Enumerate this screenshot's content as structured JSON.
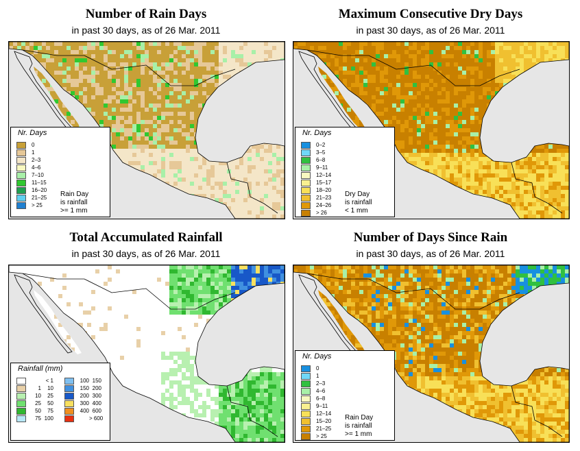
{
  "panels": {
    "rain_days": {
      "title": "Number of Rain Days",
      "subtitle": "in past 30 days, as of  26 Mar. 2011",
      "legend_title": "Nr. Days",
      "legend": [
        {
          "label": "0",
          "color": "#c8a038"
        },
        {
          "label": "1",
          "color": "#e6c898"
        },
        {
          "label": "2–3",
          "color": "#f4e6c8"
        },
        {
          "label": "4–6",
          "color": "#f8f8c0"
        },
        {
          "label": "7–10",
          "color": "#a8f0a8"
        },
        {
          "label": "11–15",
          "color": "#30c830"
        },
        {
          "label": "16–20",
          "color": "#20a050"
        },
        {
          "label": "21–25",
          "color": "#60d0f0"
        },
        {
          "label": "> 25",
          "color": "#2080d0"
        }
      ],
      "note": [
        "Rain Day",
        "is rainfall",
        ">= 1 mm"
      ]
    },
    "dry_days": {
      "title": "Maximum Consecutive Dry Days",
      "subtitle": "in past 30 days, as of  26 Mar. 2011",
      "legend_title": "Nr. Days",
      "legend": [
        {
          "label": "0–2",
          "color": "#1890e0"
        },
        {
          "label": "3–5",
          "color": "#70d8f8"
        },
        {
          "label": "6–8",
          "color": "#30c040"
        },
        {
          "label": "9–11",
          "color": "#a8f0a8"
        },
        {
          "label": "12–14",
          "color": "#f8f8c0"
        },
        {
          "label": "15–17",
          "color": "#f8f090"
        },
        {
          "label": "18–20",
          "color": "#f8e058"
        },
        {
          "label": "21–23",
          "color": "#f0c030"
        },
        {
          "label": "24–26",
          "color": "#e09808"
        },
        {
          "label": "> 26",
          "color": "#c88000"
        }
      ],
      "note": [
        "Dry Day",
        "is rainfall",
        "< 1 mm"
      ]
    },
    "rainfall": {
      "title": "Total Accumulated Rainfall",
      "subtitle": "in past 30 days, as of  26 Mar. 2011",
      "legend_title": "Rainfall (mm)",
      "legend_left": [
        {
          "a": "",
          "b": "< 1",
          "color": "#ffffff"
        },
        {
          "a": "1",
          "b": "10",
          "color": "#e8d0a8"
        },
        {
          "a": "10",
          "b": "25",
          "color": "#b8f0b0"
        },
        {
          "a": "25",
          "b": "50",
          "color": "#70e070"
        },
        {
          "a": "50",
          "b": "75",
          "color": "#30b830"
        },
        {
          "a": "75",
          "b": "100",
          "color": "#b8e8f8"
        }
      ],
      "legend_right": [
        {
          "a": "100",
          "b": "150",
          "color": "#80c0f0"
        },
        {
          "a": "150",
          "b": "200",
          "color": "#4090e0"
        },
        {
          "a": "200",
          "b": "300",
          "color": "#1858c8"
        },
        {
          "a": "300",
          "b": "400",
          "color": "#f8e060"
        },
        {
          "a": "400",
          "b": "600",
          "color": "#f09020"
        },
        {
          "a": "",
          "b": "> 600",
          "color": "#e83010"
        }
      ]
    },
    "since_rain": {
      "title": "Number of Days Since Rain",
      "subtitle": "in past 30 days, as of  26 Mar. 2011",
      "legend_title": "Nr. Days",
      "legend": [
        {
          "label": "0",
          "color": "#1890e0"
        },
        {
          "label": "1",
          "color": "#70d8f8"
        },
        {
          "label": "2–3",
          "color": "#30c040"
        },
        {
          "label": "4–6",
          "color": "#a8f0a8"
        },
        {
          "label": "6–8",
          "color": "#f8f8c0"
        },
        {
          "label": "9–11",
          "color": "#f8f090"
        },
        {
          "label": "12–14",
          "color": "#f8e058"
        },
        {
          "label": "15–20",
          "color": "#f0c030"
        },
        {
          "label": "21–25",
          "color": "#e09808"
        },
        {
          "label": "> 25",
          "color": "#c88000"
        }
      ],
      "note": [
        "Rain Day",
        "is rainfall",
        ">= 1 mm"
      ]
    }
  },
  "map_colors": {
    "ocean": "#e6e6e6",
    "rain_days": [
      "#c8a038",
      "#e6c898",
      "#f4e6c8",
      "#30c830",
      "#a8f0a8"
    ],
    "dry_days": [
      "#c88000",
      "#e09808",
      "#f0c030",
      "#f8e058",
      "#a8f0a8",
      "#30c040"
    ],
    "rainfall": [
      "#ffffff",
      "#e8d0a8",
      "#b8f0b0",
      "#70e070",
      "#30b830",
      "#1858c8",
      "#4090e0",
      "#f8e060"
    ],
    "since_rain": [
      "#c88000",
      "#e09808",
      "#f0c030",
      "#f8e058",
      "#a8f0a8",
      "#30c040",
      "#1890e0"
    ]
  }
}
